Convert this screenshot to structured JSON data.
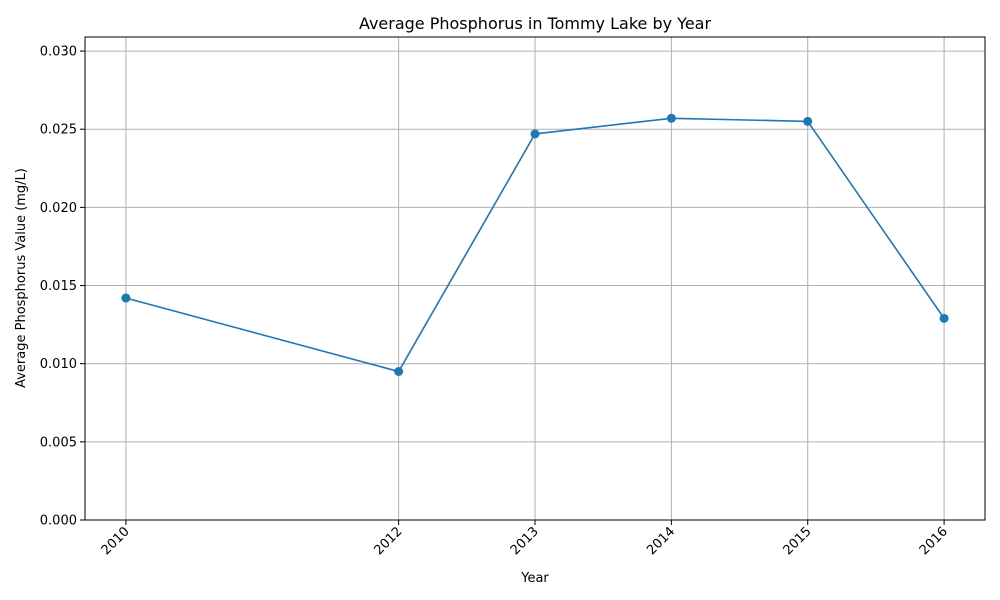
{
  "chart_data": {
    "type": "line",
    "title": "Average Phosphorus in Tommy Lake by Year",
    "xlabel": "Year",
    "ylabel": "Average Phosphorus Value (mg/L)",
    "x": [
      2010,
      2012,
      2013,
      2014,
      2015,
      2016
    ],
    "x_tick_labels": [
      "2010",
      "2012",
      "2013",
      "2014",
      "2015",
      "2016"
    ],
    "series": [
      {
        "values": [
          0.0142,
          0.0095,
          0.0247,
          0.0257,
          0.0255,
          0.0129
        ]
      }
    ],
    "xlim": [
      2009.7,
      2016.3
    ],
    "ylim": [
      0,
      0.0309
    ],
    "y_ticks": [
      0,
      0.005,
      0.01,
      0.015,
      0.02,
      0.025,
      0.03
    ],
    "y_tick_labels": [
      "0.000",
      "0.005",
      "0.010",
      "0.015",
      "0.020",
      "0.025",
      "0.030"
    ],
    "grid": true,
    "marker": "circle",
    "line_color": "#1f77b4"
  }
}
